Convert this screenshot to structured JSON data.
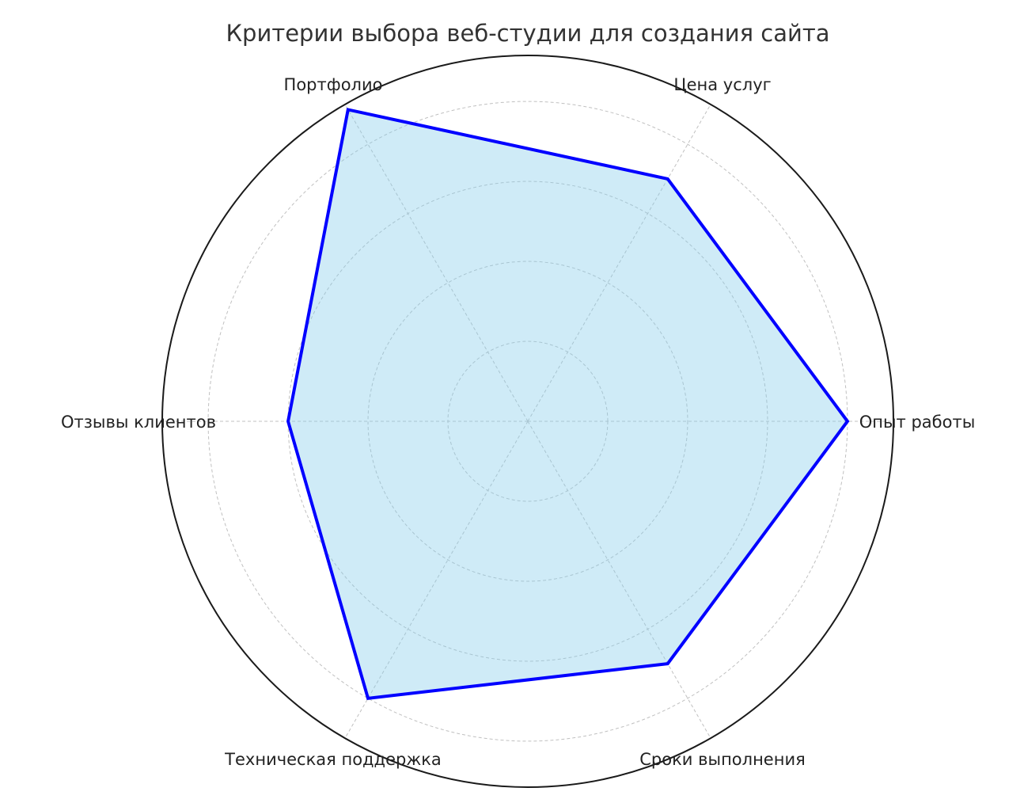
{
  "chart_data": {
    "type": "radar",
    "title": "Критерии выбора веб-студии для создания сайта",
    "categories": [
      "Опыт работы",
      "Цена услуг",
      "Портфолио",
      "Отзывы клиентов",
      "Техническая поддержка",
      "Сроки выполнения"
    ],
    "values": [
      8,
      7,
      9,
      6,
      8,
      7
    ],
    "rlim": [
      0,
      9.15
    ],
    "grid_rings": [
      2,
      4,
      6,
      8
    ],
    "grid": true,
    "radial_tick_labels_visible": false,
    "colors": {
      "line": "#0000ff",
      "fill": "#87ceeb",
      "grid": "#c0c0c0",
      "outline": "#1a1a1a"
    }
  }
}
